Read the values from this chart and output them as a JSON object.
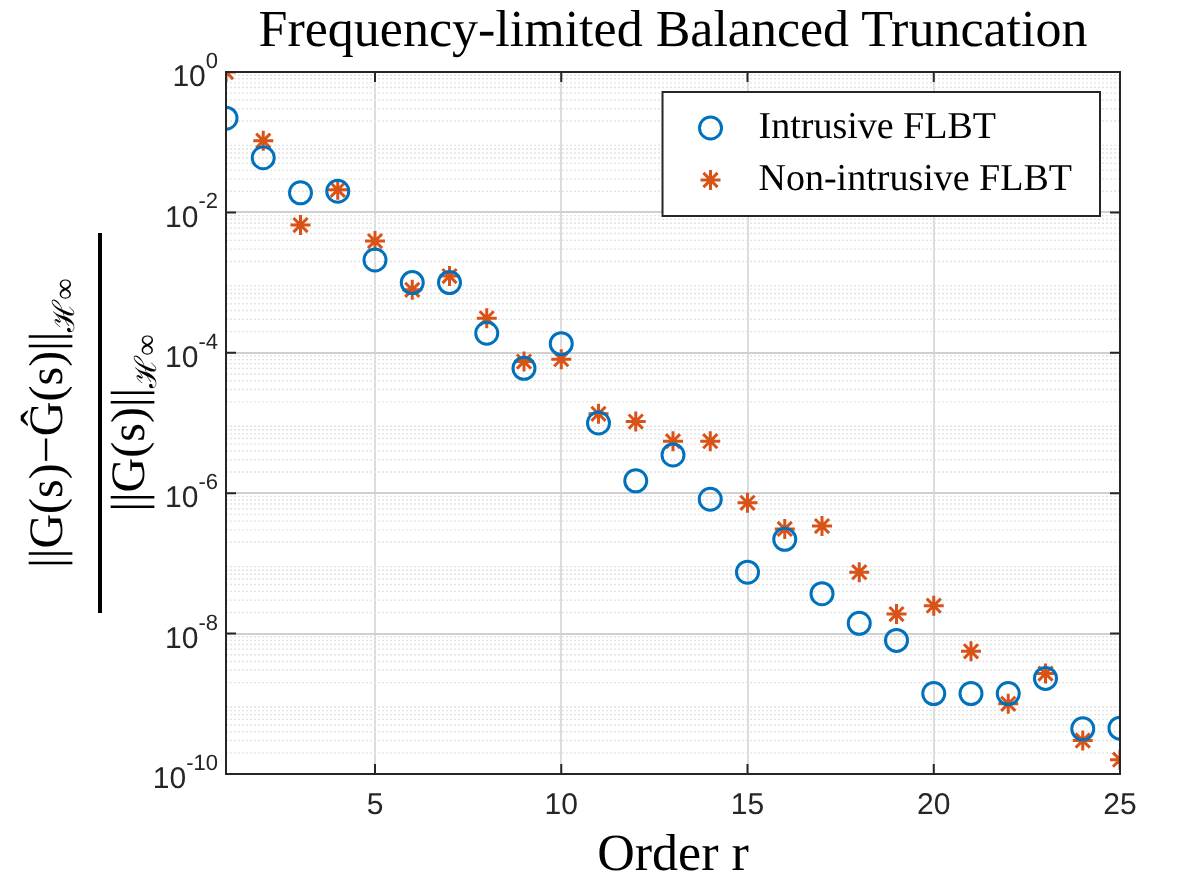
{
  "chart_data": {
    "type": "scatter",
    "title": "Frequency-limited Balanced Truncation",
    "xlabel": "Order r",
    "ylabel": "||G(s)−Ĝ(s)||$_{ℋ∞}$ ||G(s)||$_{ℋ∞}$",
    "x": [
      1,
      2,
      3,
      4,
      5,
      6,
      7,
      8,
      9,
      10,
      11,
      12,
      13,
      14,
      15,
      16,
      17,
      18,
      19,
      20,
      21,
      22,
      23,
      24,
      25
    ],
    "series": [
      {
        "name": "Intrusive FLBT",
        "color": "#0072bd",
        "marker": "circle",
        "values": [
          0.22,
          0.06,
          0.019,
          0.02,
          0.0021,
          0.001,
          0.001,
          0.00019,
          6e-05,
          0.000135,
          1e-05,
          1.5e-06,
          3.5e-06,
          8.2e-07,
          7.5e-08,
          2.2e-07,
          3.7e-08,
          1.4e-08,
          8e-09,
          1.4e-09,
          1.4e-09,
          1.4e-09,
          2.3e-09,
          4.4e-10,
          4.5e-10
        ]
      },
      {
        "name": "Non-intrusive FLBT",
        "color": "#d95319",
        "marker": "cross",
        "values": [
          1,
          0.105,
          0.0066,
          0.021,
          0.0039,
          0.00079,
          0.00124,
          0.00031,
          7.5e-05,
          8.1e-05,
          1.35e-05,
          1.05e-05,
          5.5e-06,
          5.5e-06,
          7.3e-07,
          3.1e-07,
          3.4e-07,
          7.5e-08,
          1.9e-08,
          2.5e-08,
          5.6e-09,
          1e-09,
          2.7e-09,
          3e-10,
          1.6e-10
        ]
      }
    ],
    "log": "y",
    "xlim": [
      1,
      25
    ],
    "xticks": [
      5,
      10,
      15,
      20,
      25
    ],
    "ylim": [
      1e-10,
      1
    ],
    "yticks": [
      {
        "value": 1e-10,
        "label": "10$^{-10}$"
      },
      {
        "value": 1e-08,
        "label": "10$^{-8}$"
      },
      {
        "value": 1e-06,
        "label": "10$^{-6}$"
      },
      {
        "value": 0.0001,
        "label": "10$^{-4}$"
      },
      {
        "value": 0.01,
        "label": "10$^{-2}$"
      },
      {
        "value": 1,
        "label": "10$^{0}$"
      }
    ],
    "grid": true,
    "legend": "top right"
  }
}
